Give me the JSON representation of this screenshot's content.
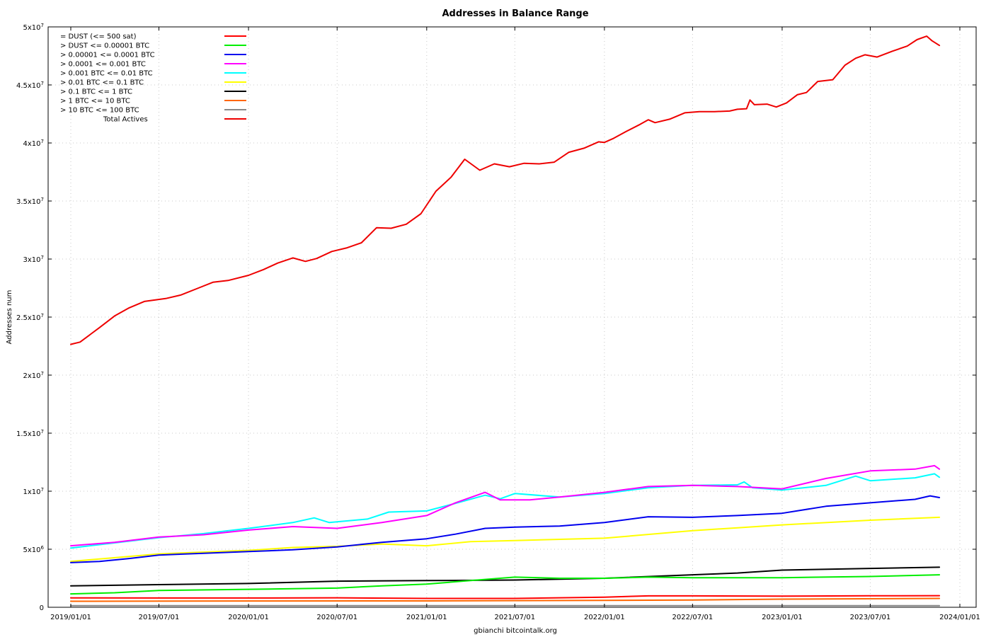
{
  "chart_data": {
    "type": "line",
    "title": "Addresses in Balance Range",
    "ylabel": "Addresses num",
    "xlabel": "gbianchi bitcointalk.org",
    "grid": true,
    "legend_position": "top-left",
    "x_ticks": [
      "2019/01/01",
      "2019/07/01",
      "2020/01/01",
      "2020/07/01",
      "2021/01/01",
      "2021/07/01",
      "2022/01/01",
      "2022/07/01",
      "2023/01/01",
      "2023/07/01",
      "2024/01/01"
    ],
    "xlim": [
      "2019/01/01",
      "2024/01/01"
    ],
    "y_ticks": [
      {
        "value": 0,
        "mant": "0",
        "exp": ""
      },
      {
        "value": 5000000,
        "mant": "5x10",
        "exp": "6"
      },
      {
        "value": 10000000,
        "mant": "1x10",
        "exp": "7"
      },
      {
        "value": 15000000,
        "mant": "1.5x10",
        "exp": "7"
      },
      {
        "value": 20000000,
        "mant": "2x10",
        "exp": "7"
      },
      {
        "value": 25000000,
        "mant": "2.5x10",
        "exp": "7"
      },
      {
        "value": 30000000,
        "mant": "3x10",
        "exp": "7"
      },
      {
        "value": 35000000,
        "mant": "3.5x10",
        "exp": "7"
      },
      {
        "value": 40000000,
        "mant": "4x10",
        "exp": "7"
      },
      {
        "value": 45000000,
        "mant": "4.5x10",
        "exp": "7"
      },
      {
        "value": 50000000,
        "mant": "5x10",
        "exp": "7"
      }
    ],
    "ylim": [
      0,
      50000000
    ],
    "series": [
      {
        "name": "= DUST (<= 500 sat)",
        "color": "#ff0000",
        "points": [
          [
            "2019/01/01",
            810000
          ],
          [
            "2019/07/01",
            800000
          ],
          [
            "2020/01/01",
            800000
          ],
          [
            "2020/07/01",
            820000
          ],
          [
            "2021/01/01",
            760000
          ],
          [
            "2021/07/01",
            760000
          ],
          [
            "2022/01/01",
            870000
          ],
          [
            "2022/04/01",
            980000
          ],
          [
            "2022/07/01",
            980000
          ],
          [
            "2023/01/01",
            960000
          ],
          [
            "2023/07/01",
            990000
          ],
          [
            "2023/11/20",
            1000000
          ]
        ]
      },
      {
        "name": "> DUST <= 0.00001 BTC",
        "color": "#00ee00",
        "points": [
          [
            "2019/01/01",
            1150000
          ],
          [
            "2019/04/01",
            1250000
          ],
          [
            "2019/07/01",
            1450000
          ],
          [
            "2020/01/01",
            1550000
          ],
          [
            "2020/04/01",
            1600000
          ],
          [
            "2020/07/01",
            1650000
          ],
          [
            "2020/10/01",
            1850000
          ],
          [
            "2021/01/01",
            2000000
          ],
          [
            "2021/04/01",
            2300000
          ],
          [
            "2021/07/01",
            2600000
          ],
          [
            "2021/10/01",
            2500000
          ],
          [
            "2022/01/01",
            2500000
          ],
          [
            "2022/04/01",
            2600000
          ],
          [
            "2022/07/01",
            2550000
          ],
          [
            "2023/01/01",
            2550000
          ],
          [
            "2023/07/01",
            2650000
          ],
          [
            "2023/11/20",
            2800000
          ]
        ]
      },
      {
        "name": "> 0.00001 <= 0.0001 BTC",
        "color": "#0000ee",
        "points": [
          [
            "2019/01/01",
            3850000
          ],
          [
            "2019/03/01",
            3950000
          ],
          [
            "2019/05/01",
            4200000
          ],
          [
            "2019/07/01",
            4500000
          ],
          [
            "2019/10/01",
            4650000
          ],
          [
            "2020/01/01",
            4800000
          ],
          [
            "2020/04/01",
            4950000
          ],
          [
            "2020/07/01",
            5200000
          ],
          [
            "2020/10/01",
            5600000
          ],
          [
            "2021/01/01",
            5900000
          ],
          [
            "2021/03/01",
            6300000
          ],
          [
            "2021/05/01",
            6800000
          ],
          [
            "2021/07/01",
            6900000
          ],
          [
            "2021/10/01",
            7000000
          ],
          [
            "2022/01/01",
            7300000
          ],
          [
            "2022/04/01",
            7800000
          ],
          [
            "2022/07/01",
            7750000
          ],
          [
            "2022/10/01",
            7900000
          ],
          [
            "2023/01/01",
            8100000
          ],
          [
            "2023/04/01",
            8700000
          ],
          [
            "2023/07/01",
            9000000
          ],
          [
            "2023/10/01",
            9300000
          ],
          [
            "2023/11/01",
            9600000
          ],
          [
            "2023/11/20",
            9450000
          ]
        ]
      },
      {
        "name": "> 0.0001 <= 0.001 BTC",
        "color": "#ff00ff",
        "points": [
          [
            "2019/01/01",
            5300000
          ],
          [
            "2019/04/01",
            5600000
          ],
          [
            "2019/07/01",
            6050000
          ],
          [
            "2019/10/01",
            6250000
          ],
          [
            "2020/01/01",
            6650000
          ],
          [
            "2020/04/01",
            6950000
          ],
          [
            "2020/07/01",
            6800000
          ],
          [
            "2020/10/01",
            7300000
          ],
          [
            "2021/01/01",
            7900000
          ],
          [
            "2021/03/01",
            9000000
          ],
          [
            "2021/05/01",
            9900000
          ],
          [
            "2021/06/01",
            9250000
          ],
          [
            "2021/08/01",
            9250000
          ],
          [
            "2021/10/01",
            9500000
          ],
          [
            "2022/01/01",
            9900000
          ],
          [
            "2022/04/01",
            10400000
          ],
          [
            "2022/07/01",
            10500000
          ],
          [
            "2022/10/01",
            10400000
          ],
          [
            "2023/01/01",
            10200000
          ],
          [
            "2023/04/01",
            11100000
          ],
          [
            "2023/07/01",
            11750000
          ],
          [
            "2023/10/01",
            11900000
          ],
          [
            "2023/11/10",
            12200000
          ],
          [
            "2023/11/20",
            11900000
          ]
        ]
      },
      {
        "name": "> 0.001 BTC <= 0.01 BTC",
        "color": "#00ffff",
        "points": [
          [
            "2019/01/01",
            5100000
          ],
          [
            "2019/04/01",
            5550000
          ],
          [
            "2019/07/01",
            6000000
          ],
          [
            "2019/10/01",
            6350000
          ],
          [
            "2020/01/01",
            6800000
          ],
          [
            "2020/04/01",
            7300000
          ],
          [
            "2020/05/15",
            7700000
          ],
          [
            "2020/06/15",
            7300000
          ],
          [
            "2020/09/01",
            7600000
          ],
          [
            "2020/10/15",
            8200000
          ],
          [
            "2021/01/01",
            8300000
          ],
          [
            "2021/03/01",
            8950000
          ],
          [
            "2021/05/01",
            9650000
          ],
          [
            "2021/06/01",
            9350000
          ],
          [
            "2021/07/01",
            9800000
          ],
          [
            "2021/10/01",
            9500000
          ],
          [
            "2022/01/01",
            9800000
          ],
          [
            "2022/04/01",
            10300000
          ],
          [
            "2022/07/01",
            10500000
          ],
          [
            "2022/10/01",
            10550000
          ],
          [
            "2022/10/15",
            10800000
          ],
          [
            "2022/11/01",
            10300000
          ],
          [
            "2023/01/01",
            10100000
          ],
          [
            "2023/04/01",
            10500000
          ],
          [
            "2023/06/01",
            11300000
          ],
          [
            "2023/07/01",
            10900000
          ],
          [
            "2023/10/01",
            11150000
          ],
          [
            "2023/11/10",
            11500000
          ],
          [
            "2023/11/20",
            11200000
          ]
        ]
      },
      {
        "name": "> 0.01 BTC <= 0.1 BTC",
        "color": "#ffff00",
        "points": [
          [
            "2019/01/01",
            3950000
          ],
          [
            "2019/07/01",
            4600000
          ],
          [
            "2020/01/01",
            4900000
          ],
          [
            "2020/04/01",
            5150000
          ],
          [
            "2020/07/01",
            5250000
          ],
          [
            "2020/10/01",
            5450000
          ],
          [
            "2021/01/01",
            5300000
          ],
          [
            "2021/04/01",
            5650000
          ],
          [
            "2021/07/01",
            5750000
          ],
          [
            "2022/01/01",
            5950000
          ],
          [
            "2022/07/01",
            6600000
          ],
          [
            "2022/10/01",
            6850000
          ],
          [
            "2023/01/01",
            7100000
          ],
          [
            "2023/07/01",
            7500000
          ],
          [
            "2023/11/20",
            7750000
          ]
        ]
      },
      {
        "name": "> 0.1 BTC <= 1 BTC",
        "color": "#000000",
        "points": [
          [
            "2019/01/01",
            1850000
          ],
          [
            "2019/07/01",
            1950000
          ],
          [
            "2020/01/01",
            2050000
          ],
          [
            "2020/07/01",
            2250000
          ],
          [
            "2021/01/01",
            2300000
          ],
          [
            "2021/07/01",
            2350000
          ],
          [
            "2022/01/01",
            2500000
          ],
          [
            "2022/07/01",
            2800000
          ],
          [
            "2022/10/01",
            2950000
          ],
          [
            "2023/01/01",
            3200000
          ],
          [
            "2023/07/01",
            3350000
          ],
          [
            "2023/11/20",
            3450000
          ]
        ]
      },
      {
        "name": "> 1 BTC <= 10 BTC",
        "color": "#ff6600",
        "points": [
          [
            "2019/01/01",
            520000
          ],
          [
            "2020/01/01",
            540000
          ],
          [
            "2021/01/01",
            550000
          ],
          [
            "2022/01/01",
            590000
          ],
          [
            "2022/07/01",
            630000
          ],
          [
            "2023/01/01",
            700000
          ],
          [
            "2023/11/20",
            760000
          ]
        ]
      },
      {
        "name": "> 10 BTC <= 100 BTC",
        "color": "#888888",
        "points": [
          [
            "2019/01/01",
            140000
          ],
          [
            "2020/01/01",
            140000
          ],
          [
            "2021/01/01",
            135000
          ],
          [
            "2022/01/01",
            135000
          ],
          [
            "2023/01/01",
            140000
          ],
          [
            "2023/11/20",
            140000
          ]
        ]
      },
      {
        "name": "Total Actives",
        "color": "#ee0000",
        "legend_indent": true,
        "points": [
          [
            "2019/01/01",
            22650000
          ],
          [
            "2019/01/20",
            22850000
          ],
          [
            "2019/03/01",
            24100000
          ],
          [
            "2019/04/01",
            25100000
          ],
          [
            "2019/05/01",
            25800000
          ],
          [
            "2019/06/01",
            26350000
          ],
          [
            "2019/07/15",
            26600000
          ],
          [
            "2019/08/15",
            26900000
          ],
          [
            "2019/09/20",
            27500000
          ],
          [
            "2019/10/20",
            28000000
          ],
          [
            "2019/11/20",
            28150000
          ],
          [
            "2020/01/01",
            28600000
          ],
          [
            "2020/02/01",
            29100000
          ],
          [
            "2020/03/01",
            29650000
          ],
          [
            "2020/04/01",
            30100000
          ],
          [
            "2020/04/27",
            29800000
          ],
          [
            "2020/05/20",
            30050000
          ],
          [
            "2020/06/20",
            30650000
          ],
          [
            "2020/07/20",
            30950000
          ],
          [
            "2020/08/20",
            31400000
          ],
          [
            "2020/09/20",
            32700000
          ],
          [
            "2020/10/20",
            32650000
          ],
          [
            "2020/11/20",
            33000000
          ],
          [
            "2020/12/20",
            33900000
          ],
          [
            "2021/01/20",
            35850000
          ],
          [
            "2021/02/20",
            37050000
          ],
          [
            "2021/03/20",
            38600000
          ],
          [
            "2021/04/20",
            37650000
          ],
          [
            "2021/05/20",
            38200000
          ],
          [
            "2021/06/20",
            37950000
          ],
          [
            "2021/07/20",
            38250000
          ],
          [
            "2021/08/20",
            38200000
          ],
          [
            "2021/09/20",
            38350000
          ],
          [
            "2021/10/20",
            39200000
          ],
          [
            "2021/11/20",
            39550000
          ],
          [
            "2021/12/20",
            40100000
          ],
          [
            "2022/01/01",
            40050000
          ],
          [
            "2022/01/20",
            40400000
          ],
          [
            "2022/02/15",
            41000000
          ],
          [
            "2022/03/15",
            41600000
          ],
          [
            "2022/04/01",
            42000000
          ],
          [
            "2022/04/15",
            41750000
          ],
          [
            "2022/05/15",
            42050000
          ],
          [
            "2022/06/15",
            42600000
          ],
          [
            "2022/07/15",
            42700000
          ],
          [
            "2022/08/15",
            42700000
          ],
          [
            "2022/09/15",
            42750000
          ],
          [
            "2022/10/01",
            42900000
          ],
          [
            "2022/10/20",
            42950000
          ],
          [
            "2022/10/27",
            43700000
          ],
          [
            "2022/11/05",
            43300000
          ],
          [
            "2022/12/01",
            43350000
          ],
          [
            "2022/12/20",
            43100000
          ],
          [
            "2023/01/10",
            43450000
          ],
          [
            "2023/02/01",
            44150000
          ],
          [
            "2023/02/20",
            44350000
          ],
          [
            "2023/03/15",
            45300000
          ],
          [
            "2023/04/15",
            45450000
          ],
          [
            "2023/05/10",
            46700000
          ],
          [
            "2023/06/01",
            47300000
          ],
          [
            "2023/06/20",
            47600000
          ],
          [
            "2023/07/15",
            47400000
          ],
          [
            "2023/08/15",
            47900000
          ],
          [
            "2023/09/15",
            48350000
          ],
          [
            "2023/10/05",
            48900000
          ],
          [
            "2023/10/25",
            49200000
          ],
          [
            "2023/11/05",
            48800000
          ],
          [
            "2023/11/20",
            48400000
          ]
        ]
      }
    ]
  }
}
